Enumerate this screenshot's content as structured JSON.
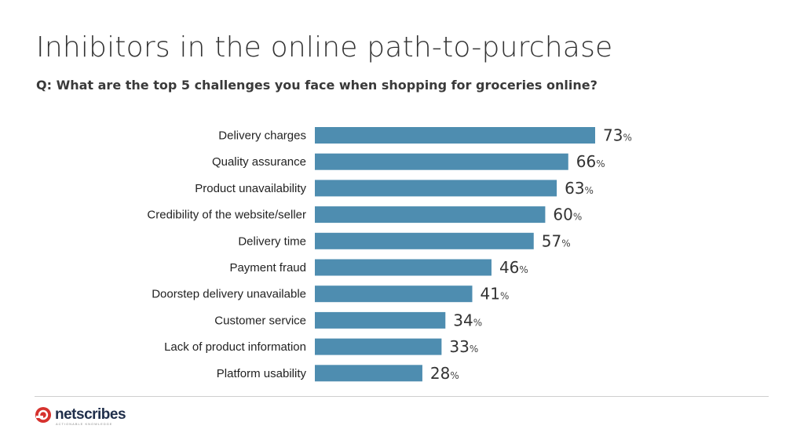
{
  "title": "Inhibitors in the online path-to-purchase",
  "subtitle": "Q: What are the top 5 challenges you face when shopping for groceries online?",
  "colors": {
    "bar": "#4e8db0",
    "text": "#333333",
    "brand_red": "#d6322e",
    "brand_navy": "#1f2e4a"
  },
  "brand": {
    "name": "netscribes",
    "tagline": "ACTIONABLE KNOWLEDGE",
    "icon": "netscribes-logo-icon"
  },
  "chart_data": {
    "type": "bar",
    "orientation": "horizontal",
    "categories": [
      "Delivery charges",
      "Quality assurance",
      "Product unavailability",
      "Credibility of the website/seller",
      "Delivery time",
      "Payment fraud",
      "Doorstep delivery unavailable",
      "Customer service",
      "Lack of product information",
      "Platform usability"
    ],
    "values": [
      73,
      66,
      63,
      60,
      57,
      46,
      41,
      34,
      33,
      28
    ],
    "unit": "%",
    "xlim": [
      0,
      100
    ],
    "grid": false,
    "legend": "none"
  }
}
